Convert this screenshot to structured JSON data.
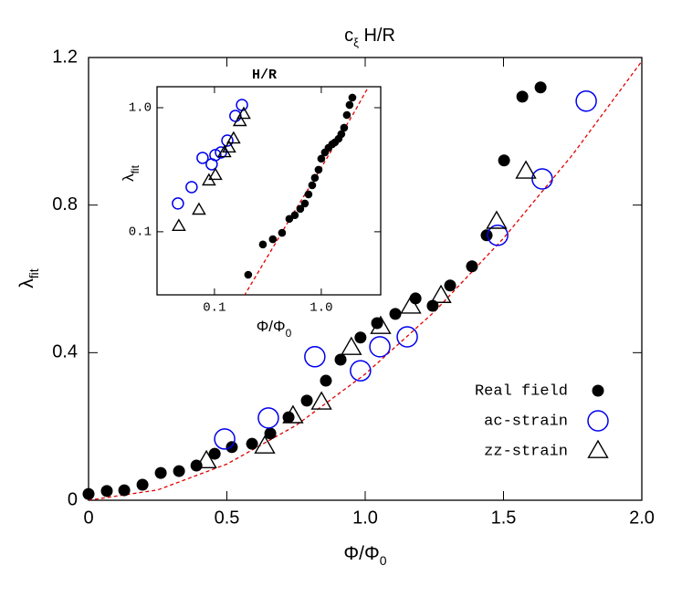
{
  "chart_data": [
    {
      "type": "scatter",
      "title": [
        "c",
        "ξ",
        " H/R"
      ],
      "xlabel": [
        "Φ/Φ",
        "0"
      ],
      "ylabel": [
        "λ",
        "fit"
      ],
      "xlim": [
        0,
        2
      ],
      "ylim": [
        0,
        1.2
      ],
      "xticks": [
        0,
        0.5,
        {
          "value": 1,
          "label": "1.0"
        },
        1.5,
        {
          "value": 2,
          "label": "2.0"
        }
      ],
      "yticks": [
        0,
        0.4,
        0.8,
        1.2
      ],
      "legend": "lower right",
      "series": [
        {
          "name": "Real field",
          "color": "#000000",
          "marker": "filled-circle",
          "x": [
            0,
            0.066,
            0.129,
            0.195,
            0.261,
            0.327,
            0.39,
            0.456,
            0.518,
            0.591,
            0.657,
            0.723,
            0.789,
            0.858,
            0.911,
            0.983,
            1.043,
            1.109,
            1.182,
            1.244,
            1.307,
            1.386,
            1.439,
            1.502,
            1.568,
            1.634
          ],
          "values": [
            0.017,
            0.025,
            0.027,
            0.042,
            0.074,
            0.079,
            0.094,
            0.126,
            0.144,
            0.153,
            0.181,
            0.225,
            0.27,
            0.324,
            0.381,
            0.441,
            0.48,
            0.505,
            0.547,
            0.527,
            0.582,
            0.634,
            0.718,
            0.921,
            1.094,
            1.119
          ]
        },
        {
          "name": "ac-strain",
          "color": "#0000ee",
          "marker": "open-circle",
          "x": [
            0.492,
            0.65,
            0.818,
            0.983,
            1.053,
            1.152,
            1.479,
            1.64,
            1.799
          ],
          "values": [
            0.166,
            0.223,
            0.389,
            0.351,
            0.416,
            0.443,
            0.718,
            0.871,
            1.082
          ]
        },
        {
          "name": "zz-strain",
          "color": "#000000",
          "marker": "open-triangle",
          "x": [
            0.426,
            0.637,
            0.739,
            0.842,
            0.95,
            1.056,
            1.165,
            1.274,
            1.475,
            1.581
          ],
          "values": [
            0.106,
            0.146,
            0.228,
            0.265,
            0.413,
            0.47,
            0.525,
            0.554,
            0.755,
            0.891
          ]
        }
      ],
      "fit": {
        "color": "#e00000",
        "x": [
          0,
          0.25,
          0.5,
          0.75,
          1,
          1.25,
          1.5,
          1.75,
          2
        ],
        "values": [
          0,
          0.028,
          0.098,
          0.203,
          0.342,
          0.511,
          0.71,
          0.937,
          1.19
        ]
      }
    },
    {
      "type": "scatter",
      "title": "H/R",
      "xlabel": [
        "Φ/Φ",
        "0"
      ],
      "ylabel": [
        "λ",
        "fit"
      ],
      "log_x": true,
      "log_y": true,
      "xlim": [
        0.029,
        3.6
      ],
      "ylim": [
        0.031,
        1.476
      ],
      "xticks": [
        0.1,
        {
          "value": 1,
          "label": "1.0"
        }
      ],
      "yticks": [
        0.1,
        {
          "value": 1,
          "label": "1.0"
        }
      ],
      "series": [
        {
          "color": "#000000",
          "marker": "filled-circle",
          "x": [
            0.207,
            0.284,
            0.352,
            0.429,
            0.502,
            0.565,
            0.636,
            0.702,
            0.759,
            0.822,
            0.871,
            0.943,
            1.0,
            1.082,
            1.17,
            1.267,
            1.343,
            1.453,
            1.541,
            1.636,
            1.735,
            1.84,
            1.954
          ],
          "values": [
            0.045,
            0.079,
            0.087,
            0.098,
            0.127,
            0.136,
            0.153,
            0.169,
            0.2,
            0.237,
            0.272,
            0.316,
            0.388,
            0.436,
            0.475,
            0.508,
            0.526,
            0.562,
            0.613,
            0.689,
            0.873,
            1.052,
            1.205
          ]
        },
        {
          "color": "#0000ee",
          "marker": "open-circle",
          "x": [
            0.0455,
            0.0611,
            0.0774,
            0.0942,
            0.102,
            0.115,
            0.132,
            0.157,
            0.181
          ],
          "values": [
            0.169,
            0.229,
            0.394,
            0.35,
            0.415,
            0.436,
            0.543,
            0.859,
            1.052
          ]
        },
        {
          "color": "#000000",
          "marker": "open-triangle",
          "x": [
            0.0464,
            0.0716,
            0.0888,
            0.102,
            0.124,
            0.137,
            0.151,
            0.173,
            0.188
          ],
          "values": [
            0.111,
            0.15,
            0.258,
            0.286,
            0.436,
            0.475,
            0.562,
            0.776,
            0.888
          ]
        }
      ],
      "fit": {
        "color": "#e00000",
        "x": [
          0.19,
          0.5,
          1.0,
          2.0,
          2.75
        ],
        "values": [
          0.0305,
          0.124,
          0.329,
          0.896,
          1.46
        ]
      }
    }
  ]
}
